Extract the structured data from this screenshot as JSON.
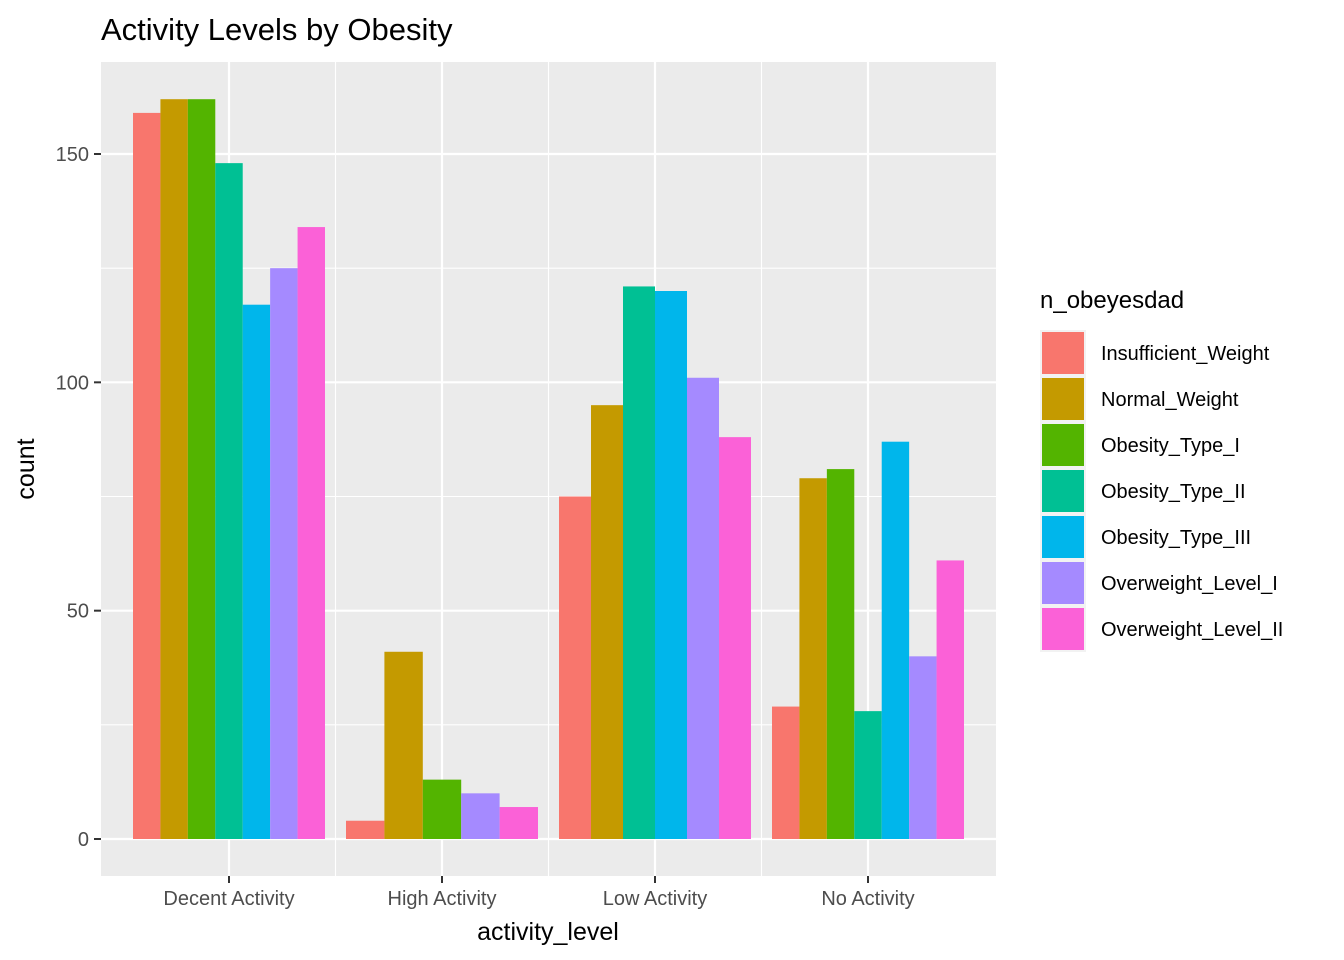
{
  "chart_data": {
    "type": "bar",
    "title": "Activity Levels by Obesity",
    "xlabel": "activity_level",
    "ylabel": "count",
    "ylim": [
      -7.5,
      170
    ],
    "y_ticks": [
      0,
      50,
      100,
      150
    ],
    "grid": true,
    "legend_title": "n_obeyesdad",
    "legend_position": "right",
    "categories": [
      "Decent Activity",
      "High Activity",
      "Low Activity",
      "No Activity"
    ],
    "series": [
      {
        "name": "Insufficient_Weight",
        "color": "#F8766D",
        "values": [
          159,
          4,
          75,
          29
        ]
      },
      {
        "name": "Normal_Weight",
        "color": "#C49A00",
        "values": [
          162,
          41,
          95,
          79
        ]
      },
      {
        "name": "Obesity_Type_I",
        "color": "#53B400",
        "values": [
          162,
          13,
          0,
          81
        ]
      },
      {
        "name": "Obesity_Type_II",
        "color": "#00C094",
        "values": [
          148,
          0,
          121,
          28
        ]
      },
      {
        "name": "Obesity_Type_III",
        "color": "#00B6EB",
        "values": [
          117,
          0,
          120,
          87
        ]
      },
      {
        "name": "Overweight_Level_I",
        "color": "#A58AFF",
        "values": [
          125,
          10,
          101,
          40
        ]
      },
      {
        "name": "Overweight_Level_II",
        "color": "#FB61D7",
        "values": [
          134,
          7,
          88,
          61
        ]
      }
    ]
  }
}
